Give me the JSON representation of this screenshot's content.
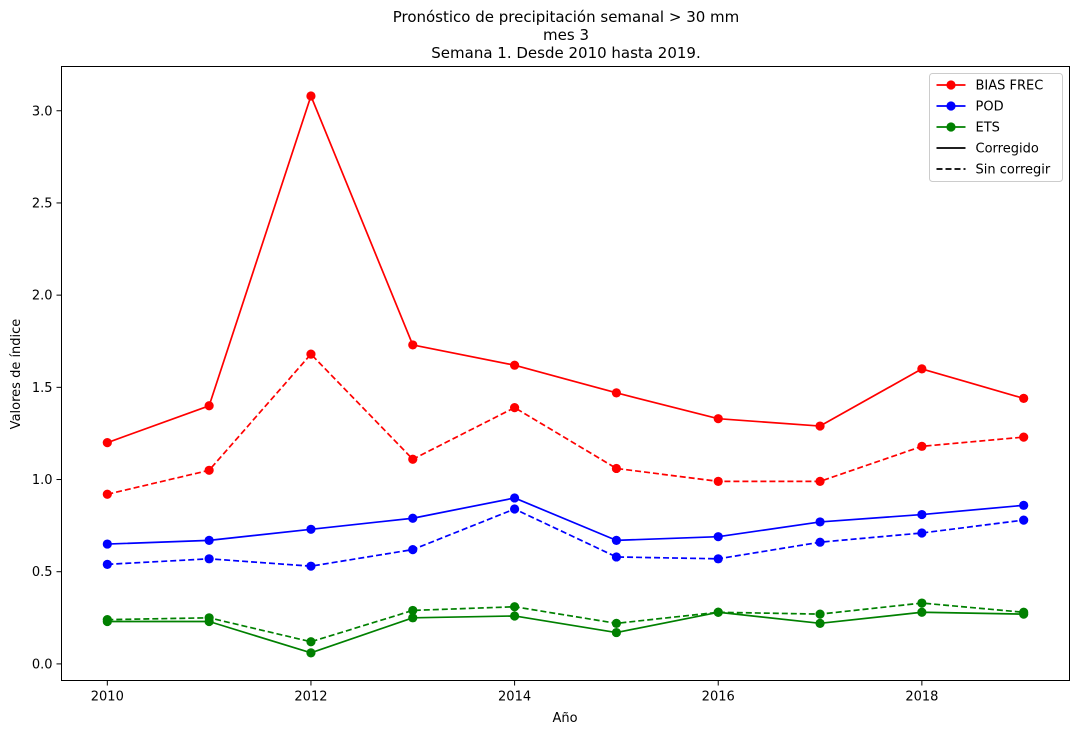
{
  "chart_data": {
    "type": "line",
    "title_lines": [
      "Pronóstico de precipitación semanal > 30 mm",
      "mes 3",
      "Semana 1. Desde 2010 hasta 2019."
    ],
    "xlabel": "Año",
    "ylabel": "Valores de índice",
    "x": [
      2010,
      2011,
      2012,
      2013,
      2014,
      2015,
      2016,
      2017,
      2018,
      2019
    ],
    "xlim": [
      2009.55,
      2019.45
    ],
    "ylim": [
      -0.09,
      3.24
    ],
    "xticks": [
      2010,
      2012,
      2014,
      2016,
      2018
    ],
    "xtick_labels": [
      "2010",
      "2012",
      "2014",
      "2016",
      "2018"
    ],
    "yticks": [
      0.0,
      0.5,
      1.0,
      1.5,
      2.0,
      2.5,
      3.0
    ],
    "ytick_labels": [
      "0.0",
      "0.5",
      "1.0",
      "1.5",
      "2.0",
      "2.5",
      "3.0"
    ],
    "grid": false,
    "legend_position": "top-right",
    "legend": [
      {
        "label": "BIAS FREC",
        "color": "#ff0000",
        "style": "marker"
      },
      {
        "label": "POD",
        "color": "#0000ff",
        "style": "marker"
      },
      {
        "label": "ETS",
        "color": "#008000",
        "style": "marker"
      },
      {
        "label": "Corregido",
        "color": "#000000",
        "style": "solid"
      },
      {
        "label": "Sin corregir",
        "color": "#000000",
        "style": "dashed"
      }
    ],
    "series": [
      {
        "metric": "BIAS FREC",
        "variant": "Corregido",
        "color": "#ff0000",
        "dashed": false,
        "values": [
          1.2,
          1.4,
          3.08,
          1.73,
          1.62,
          1.47,
          1.33,
          1.29,
          1.6,
          1.44
        ]
      },
      {
        "metric": "BIAS FREC",
        "variant": "Sin corregir",
        "color": "#ff0000",
        "dashed": true,
        "values": [
          0.92,
          1.05,
          1.68,
          1.11,
          1.39,
          1.06,
          0.99,
          0.99,
          1.18,
          1.23
        ]
      },
      {
        "metric": "POD",
        "variant": "Corregido",
        "color": "#0000ff",
        "dashed": false,
        "values": [
          0.65,
          0.67,
          0.73,
          0.79,
          0.9,
          0.67,
          0.69,
          0.77,
          0.81,
          0.86
        ]
      },
      {
        "metric": "POD",
        "variant": "Sin corregir",
        "color": "#0000ff",
        "dashed": true,
        "values": [
          0.54,
          0.57,
          0.53,
          0.62,
          0.84,
          0.58,
          0.57,
          0.66,
          0.71,
          0.78
        ]
      },
      {
        "metric": "ETS",
        "variant": "Corregido",
        "color": "#008000",
        "dashed": false,
        "values": [
          0.23,
          0.23,
          0.06,
          0.25,
          0.26,
          0.17,
          0.28,
          0.22,
          0.28,
          0.27
        ]
      },
      {
        "metric": "ETS",
        "variant": "Sin corregir",
        "color": "#008000",
        "dashed": true,
        "values": [
          0.24,
          0.25,
          0.12,
          0.29,
          0.31,
          0.22,
          0.28,
          0.27,
          0.33,
          0.28
        ]
      }
    ]
  }
}
